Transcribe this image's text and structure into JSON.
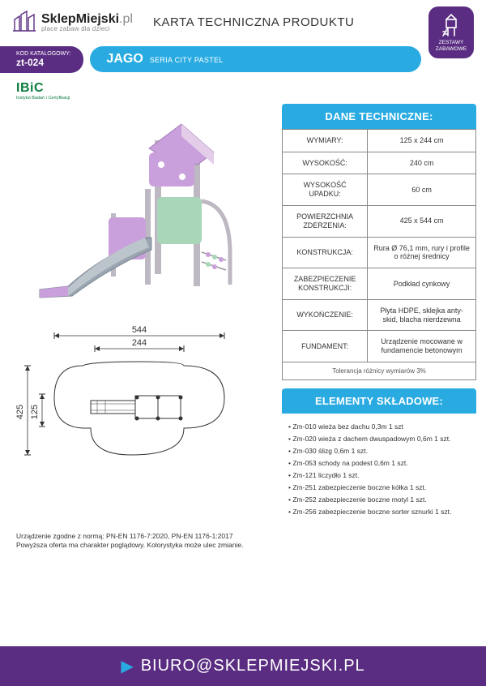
{
  "brand": {
    "name_main": "SklepMiejski",
    "name_suffix": ".pl",
    "tagline": "place zabaw dla dzieci"
  },
  "doc_title": "KARTA TECHNICZNA PRODUKTU",
  "category_badge": {
    "line1": "ZESTAWY",
    "line2": "ZABAWOWE"
  },
  "catalog": {
    "label": "KOD KATALOGOWY:",
    "code": "zt-024"
  },
  "product": {
    "name": "JAGO",
    "series": "SERIA CITY PASTEL"
  },
  "cert": {
    "name": "IBiC",
    "sub": "Instytut Badań i Certyfikacji"
  },
  "specs": {
    "header": "DANE TECHNICZNE:",
    "rows": [
      {
        "label": "WYMIARY:",
        "value": "125 x 244 cm"
      },
      {
        "label": "WYSOKOŚĆ:",
        "value": "240 cm"
      },
      {
        "label": "WYSOKOŚĆ UPADKU:",
        "value": "60 cm"
      },
      {
        "label": "POWIERZCHNIA ZDERZENIA:",
        "value": "425 x 544 cm"
      },
      {
        "label": "KONSTRUKCJA:",
        "value": "Rura Ø 76,1 mm, rury i profile o różnej średnicy"
      },
      {
        "label": "ZABEZPIECZENIE KONSTRUKCJI:",
        "value": "Podkład cynkowy"
      },
      {
        "label": "WYKOŃCZENIE:",
        "value": "Płyta HDPE, sklejka anty-skid, blacha nierdzewna"
      },
      {
        "label": "FUNDAMENT:",
        "value": "Urządzenie mocowane w fundamencie betonowym"
      }
    ],
    "tolerance": "Tolerancja różnicy wymiarów 3%"
  },
  "components": {
    "header": "ELEMENTY SKŁADOWE:",
    "items": [
      "Zm-010 wieża bez dachu 0,3m 1 szt",
      "Zm-020 wieża z dachem dwuspadowym 0,6m 1 szt.",
      "Zm-030 ślizg 0,6m 1 szt.",
      "Zm-053 schody na podest 0,6m 1 szt.",
      "Zm-121 liczydło 1 szt.",
      "Zm-251 zabezpieczenie boczne kółka 1 szt.",
      "Zm-252 zabezpieczenie boczne motyl 1 szt.",
      "Zm-256 zabezpieczenie boczne sorter sznurki 1 szt."
    ]
  },
  "plan": {
    "dim_outer_w": "544",
    "dim_inner_w": "244",
    "dim_outer_h": "425",
    "dim_inner_h": "125"
  },
  "render_colors": {
    "post": "#bdb8c2",
    "panel_purple": "#c9a0dc",
    "panel_green": "#a9d6b8",
    "slide": "#9aa5b1",
    "roof": "#e4cde8"
  },
  "footer": {
    "note1": "Urządzenie zgodne z normą: PN-EN 1176-7:2020, PN-EN 1176-1:2017",
    "note2": "Powyższa oferta ma charakter poglądowy. Kolorystyka może ulec zmianie.",
    "email": "BIURO@SKLEPMIEJSKI.PL"
  },
  "colors": {
    "purple": "#5a2d82",
    "cyan": "#29abe2",
    "green": "#0b7c3f"
  }
}
